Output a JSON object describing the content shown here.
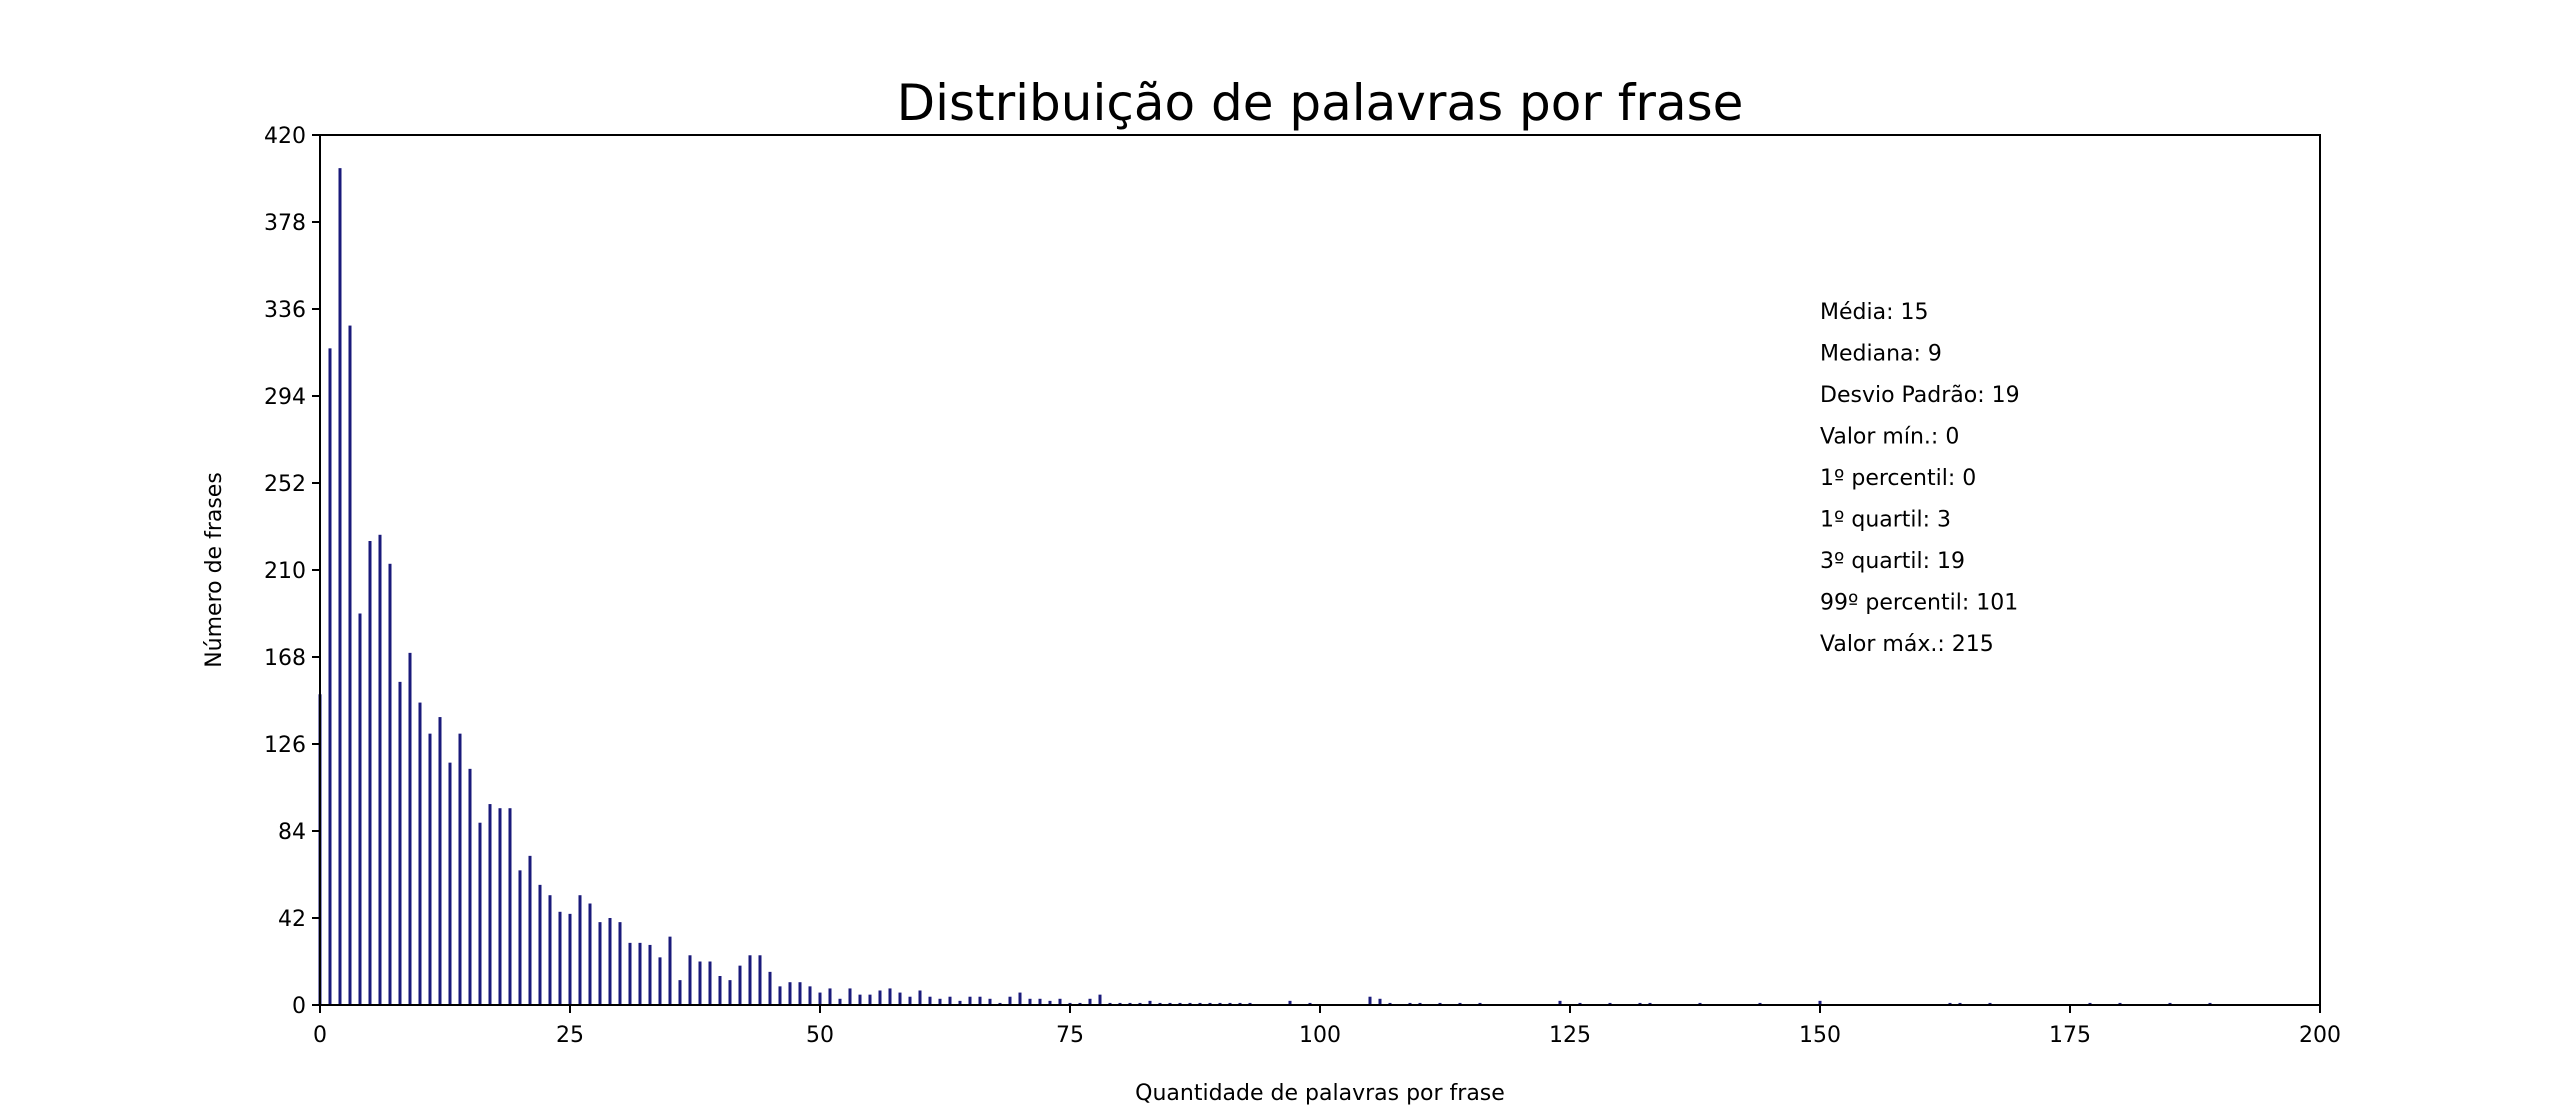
{
  "chart_data": {
    "type": "bar",
    "title": "Distribuição de palavras por frase",
    "xlabel": "Quantidade de palavras por frase",
    "ylabel": "Número de frases",
    "xlim": [
      0,
      200
    ],
    "ylim": [
      0,
      420
    ],
    "xticks": [
      0,
      25,
      50,
      75,
      100,
      125,
      150,
      175,
      200
    ],
    "yticks": [
      0,
      42,
      84,
      126,
      168,
      210,
      252,
      294,
      336,
      378,
      420
    ],
    "bar_color": "#1a1a7a",
    "grid": false,
    "stats": [
      "Média: 15",
      "Mediana: 9",
      "Desvio Padrão: 19",
      "Valor mín.: 0",
      "1º percentil: 0",
      "1º quartil: 3",
      "3º quartil: 19",
      "99º percentil: 101",
      "Valor máx.: 215"
    ],
    "x": [
      0,
      1,
      2,
      3,
      4,
      5,
      6,
      7,
      8,
      9,
      10,
      11,
      12,
      13,
      14,
      15,
      16,
      17,
      18,
      19,
      20,
      21,
      22,
      23,
      24,
      25,
      26,
      27,
      28,
      29,
      30,
      31,
      32,
      33,
      34,
      35,
      36,
      37,
      38,
      39,
      40,
      41,
      42,
      43,
      44,
      45,
      46,
      47,
      48,
      49,
      50,
      51,
      52,
      53,
      54,
      55,
      56,
      57,
      58,
      59,
      60,
      61,
      62,
      63,
      64,
      65,
      66,
      67,
      68,
      69,
      70,
      71,
      72,
      73,
      74,
      75,
      76,
      77,
      78,
      79,
      80,
      81,
      82,
      83,
      84,
      85,
      86,
      87,
      88,
      89,
      90,
      91,
      92,
      93,
      94,
      95,
      96,
      97,
      98,
      99,
      100,
      101,
      102,
      103,
      104,
      105,
      106,
      107,
      108,
      109,
      110,
      111,
      112,
      113,
      114,
      115,
      116,
      117,
      118,
      119,
      120,
      121,
      122,
      123,
      124,
      125,
      126,
      127,
      128,
      129,
      130,
      131,
      132,
      133,
      134,
      135,
      136,
      137,
      138,
      139,
      140,
      141,
      142,
      143,
      144,
      145,
      146,
      147,
      148,
      149,
      150,
      151,
      152,
      153,
      154,
      155,
      156,
      157,
      158,
      159,
      160,
      161,
      162,
      163,
      164,
      165,
      166,
      167,
      168,
      169,
      170,
      171,
      172,
      173,
      174,
      175,
      176,
      177,
      178,
      179,
      180,
      181,
      182,
      183,
      184,
      185,
      186,
      187,
      188,
      189,
      190,
      191,
      192,
      193,
      194,
      195,
      196,
      197,
      198,
      199,
      200
    ],
    "values": [
      150,
      317,
      404,
      328,
      189,
      224,
      227,
      213,
      156,
      170,
      146,
      131,
      139,
      117,
      131,
      114,
      88,
      97,
      95,
      95,
      65,
      72,
      58,
      53,
      45,
      44,
      53,
      49,
      40,
      42,
      40,
      30,
      30,
      29,
      23,
      33,
      12,
      24,
      21,
      21,
      14,
      12,
      19,
      24,
      24,
      16,
      9,
      11,
      11,
      9,
      6,
      8,
      3,
      8,
      5,
      5,
      7,
      8,
      6,
      4,
      7,
      4,
      3,
      4,
      2,
      4,
      4,
      3,
      1,
      4,
      6,
      3,
      3,
      2,
      3,
      1,
      1,
      3,
      5,
      1,
      1,
      1,
      1,
      2,
      1,
      1,
      1,
      1,
      1,
      1,
      1,
      1,
      1,
      1,
      0,
      0,
      0,
      2,
      0,
      1,
      0,
      0,
      0,
      0,
      0,
      4,
      3,
      1,
      0,
      1,
      1,
      0,
      1,
      0,
      1,
      0,
      1,
      0,
      0,
      0,
      0,
      0,
      0,
      0,
      2,
      0,
      1,
      0,
      0,
      1,
      0,
      0,
      1,
      1,
      0,
      0,
      0,
      0,
      1,
      0,
      0,
      0,
      0,
      0,
      1,
      0,
      0,
      0,
      0,
      0,
      2,
      0,
      0,
      0,
      0,
      0,
      0,
      0,
      0,
      0,
      0,
      0,
      0,
      1,
      1,
      0,
      0,
      1,
      0,
      0,
      0,
      0,
      0,
      0,
      0,
      0,
      0,
      1,
      0,
      0,
      1,
      0,
      0,
      0,
      0,
      1,
      0,
      0,
      0,
      1,
      0,
      0,
      0,
      0,
      0,
      0,
      0,
      0,
      0,
      0,
      0
    ]
  }
}
